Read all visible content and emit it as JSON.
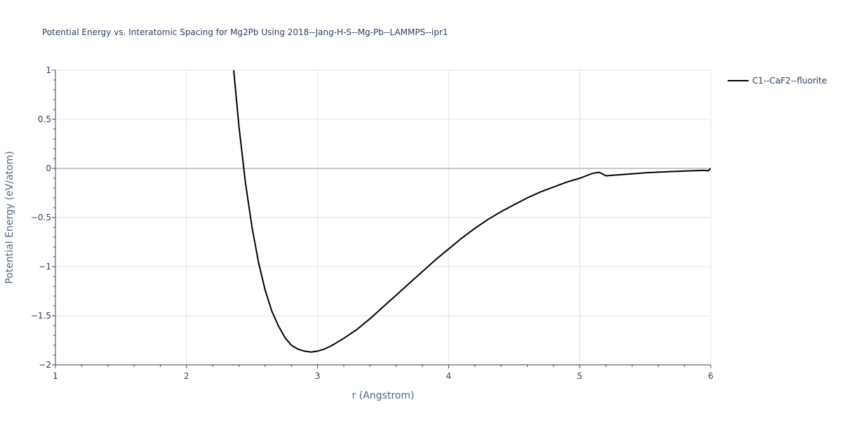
{
  "chart_data": {
    "type": "line",
    "title": "Potential Energy vs. Interatomic Spacing for Mg2Pb Using 2018--Jang-H-S--Mg-Pb--LAMMPS--ipr1",
    "xlabel": "r (Angstrom)",
    "ylabel": "Potential Energy (eV/atom)",
    "xlim": [
      1,
      6
    ],
    "ylim": [
      -2,
      1
    ],
    "x_ticks": [
      1,
      2,
      3,
      4,
      5,
      6
    ],
    "x_tick_labels": [
      "1",
      "2",
      "3",
      "4",
      "5",
      "6"
    ],
    "y_ticks": [
      -2,
      -1.5,
      -1,
      -0.5,
      0,
      0.5,
      1
    ],
    "y_tick_labels": [
      "−2",
      "−1.5",
      "−1",
      "−0.5",
      "0",
      "0.5",
      "1"
    ],
    "grid": true,
    "legend_position": "top-right",
    "line_color": "#000000",
    "series": [
      {
        "name": "C1--CaF2--fluorite",
        "x": [
          2.36,
          2.4,
          2.45,
          2.5,
          2.55,
          2.6,
          2.65,
          2.7,
          2.75,
          2.8,
          2.85,
          2.9,
          2.95,
          3.0,
          3.05,
          3.1,
          3.15,
          3.2,
          3.3,
          3.4,
          3.5,
          3.6,
          3.7,
          3.8,
          3.9,
          4.0,
          4.1,
          4.2,
          4.3,
          4.4,
          4.5,
          4.6,
          4.7,
          4.8,
          4.9,
          5.0,
          5.1,
          5.15,
          5.2,
          5.3,
          5.4,
          5.5,
          5.6,
          5.7,
          5.8,
          5.9,
          5.95,
          5.98,
          6.0
        ],
        "y": [
          1.0,
          0.43,
          -0.15,
          -0.6,
          -0.96,
          -1.24,
          -1.45,
          -1.6,
          -1.72,
          -1.8,
          -1.84,
          -1.86,
          -1.87,
          -1.86,
          -1.84,
          -1.81,
          -1.77,
          -1.73,
          -1.64,
          -1.53,
          -1.41,
          -1.29,
          -1.17,
          -1.05,
          -0.93,
          -0.82,
          -0.71,
          -0.61,
          -0.52,
          -0.44,
          -0.37,
          -0.3,
          -0.24,
          -0.19,
          -0.14,
          -0.1,
          -0.05,
          -0.04,
          -0.075,
          -0.065,
          -0.055,
          -0.045,
          -0.038,
          -0.032,
          -0.027,
          -0.022,
          -0.02,
          -0.025,
          0.0
        ]
      }
    ]
  }
}
